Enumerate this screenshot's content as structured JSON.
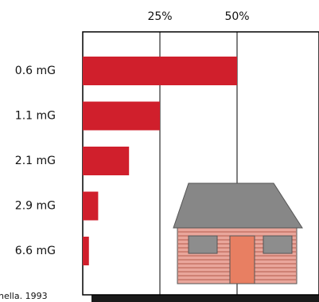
{
  "chart_data": {
    "type": "bar",
    "orientation": "horizontal",
    "title": "",
    "xlabel": "",
    "ylabel": "",
    "categories": [
      "0.6 mG",
      "1.1 mG",
      "2.1 mG",
      "2.9 mG",
      "6.6 mG"
    ],
    "values": [
      50,
      25,
      15,
      5,
      2
    ],
    "xlim": [
      0,
      50
    ],
    "x_tick_labels": [
      "25%",
      "50%"
    ],
    "x_ticks": [
      25,
      50
    ],
    "grid": "vertical gridlines at 25% and 50%",
    "bar_color": "#d01f2c",
    "source_note": "nella. 1993",
    "inset_illustration": "house"
  },
  "colors": {
    "bar": "#d01f2c",
    "frame": "#000000",
    "shadow": "#1a1a1a",
    "roof": "#878787",
    "wall": "#e9a69b",
    "siding_line": "#b55c4e",
    "door": "#e87f62",
    "window": "#8d8d8d"
  }
}
